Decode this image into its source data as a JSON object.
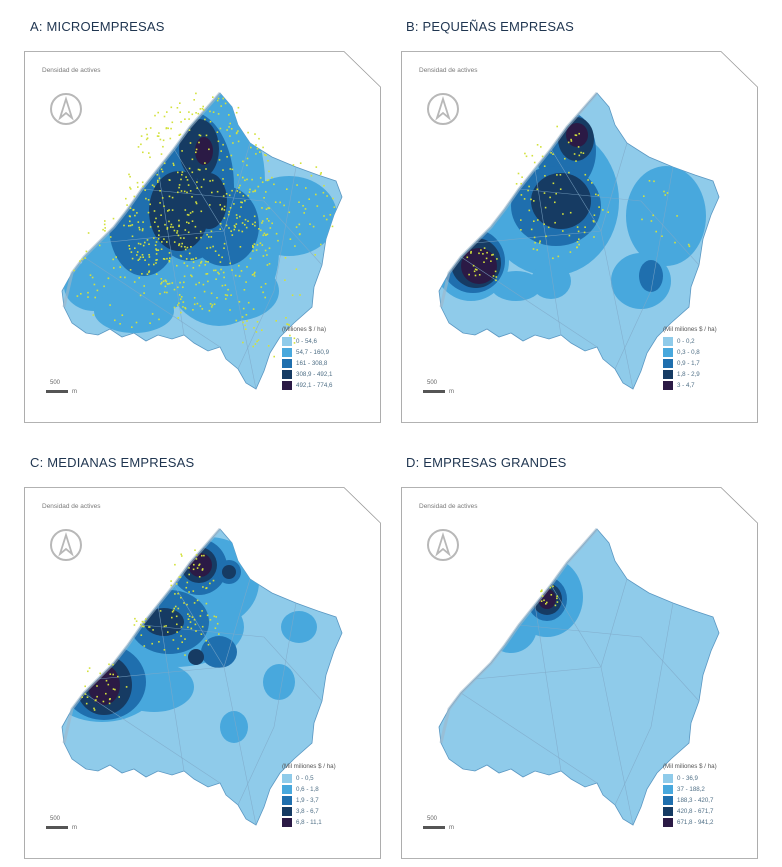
{
  "colors": {
    "c1": "#8fcbea",
    "c2": "#48a8dd",
    "c3": "#1f6fae",
    "c4": "#163b63",
    "c5": "#2b1a45",
    "points": "#d3e13c",
    "frame": "#999999"
  },
  "icon": "north-arrow-icon",
  "panels": [
    {
      "title": "A: MICROEMPRESAS",
      "density_label": "Densidad de actives",
      "legend_title": "(Miliones $ / ha)",
      "legend": [
        "0 - 54,6",
        "54,7 - 160,9",
        "161 - 308,8",
        "308,9 - 492,1",
        "492,1 - 774,6"
      ],
      "scale_number": "500",
      "scale_unit": "m"
    },
    {
      "title": "B: PEQUEÑAS EMPRESAS",
      "density_label": "Densidad de actives",
      "legend_title": "(Mil miliones $ / ha)",
      "legend": [
        "0 - 0,2",
        "0,3 - 0,8",
        "0,9 - 1,7",
        "1,8 - 2,9",
        "3 - 4,7"
      ],
      "scale_number": "500",
      "scale_unit": "m"
    },
    {
      "title": "C: MEDIANAS EMPRESAS",
      "density_label": "Densidad de actives",
      "legend_title": "(Mil miliones $ / ha)",
      "legend": [
        "0 - 0,5",
        "0,6 - 1,8",
        "1,9 - 3,7",
        "3,8 - 6,7",
        "6,8 - 11,1"
      ],
      "scale_number": "500",
      "scale_unit": "m"
    },
    {
      "title": "D: EMPRESAS GRANDES",
      "density_label": "Densidad de actives",
      "legend_title": "(Mil miliones $ / ha)",
      "legend": [
        "0 - 36,9",
        "37 - 188,2",
        "188,3 - 420,7",
        "420,8 - 671,7",
        "671,8 - 941,2"
      ],
      "scale_number": "500",
      "scale_unit": "m"
    }
  ]
}
